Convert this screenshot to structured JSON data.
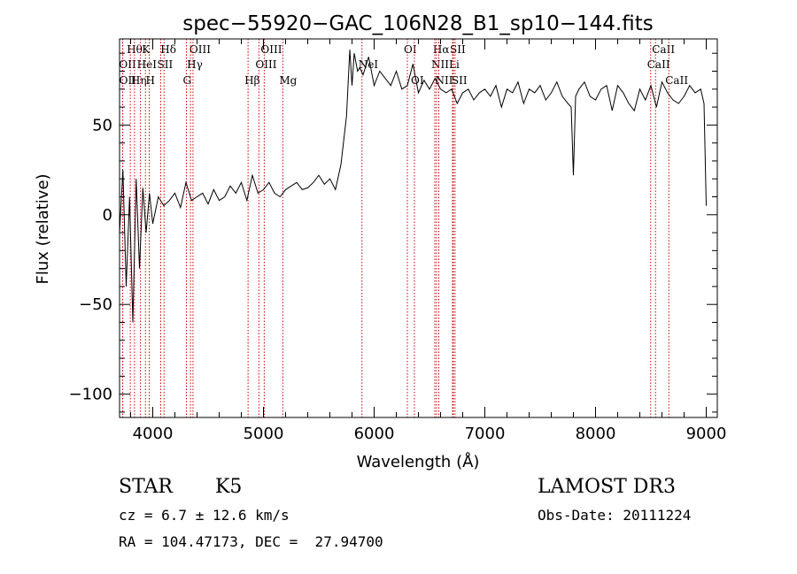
{
  "chart_data": {
    "type": "line",
    "title": "spec−55920−GAC_106N28_B1_sp10−144.fits",
    "xlabel": "Wavelength (Å)",
    "ylabel": "Flux (relative)",
    "xlim": [
      3700,
      9100
    ],
    "ylim": [
      -113,
      98
    ],
    "xticks": [
      {
        "value": 4000,
        "label": "4000"
      },
      {
        "value": 5000,
        "label": "5000"
      },
      {
        "value": 6000,
        "label": "6000"
      },
      {
        "value": 7000,
        "label": "7000"
      },
      {
        "value": 8000,
        "label": "8000"
      },
      {
        "value": 9000,
        "label": "9000"
      }
    ],
    "yticks": [
      {
        "value": 50,
        "label": "50"
      },
      {
        "value": 0,
        "label": "0"
      },
      {
        "value": -50,
        "label": "−50"
      },
      {
        "value": -100,
        "label": "−100"
      }
    ],
    "series": [
      {
        "color": "#000000",
        "x": [
          3700,
          3730,
          3760,
          3790,
          3820,
          3850,
          3880,
          3910,
          3940,
          3970,
          4000,
          4050,
          4100,
          4150,
          4200,
          4250,
          4300,
          4350,
          4400,
          4450,
          4500,
          4550,
          4600,
          4650,
          4700,
          4750,
          4800,
          4850,
          4900,
          4950,
          5000,
          5050,
          5100,
          5150,
          5200,
          5250,
          5300,
          5350,
          5400,
          5450,
          5500,
          5550,
          5600,
          5650,
          5700,
          5750,
          5780,
          5800,
          5820,
          5850,
          5870,
          5900,
          5950,
          6000,
          6050,
          6100,
          6150,
          6200,
          6250,
          6300,
          6350,
          6400,
          6450,
          6500,
          6550,
          6600,
          6650,
          6700,
          6750,
          6800,
          6850,
          6900,
          6950,
          7000,
          7050,
          7100,
          7150,
          7200,
          7250,
          7300,
          7350,
          7400,
          7450,
          7500,
          7550,
          7600,
          7650,
          7700,
          7750,
          7780,
          7800,
          7820,
          7850,
          7900,
          7950,
          8000,
          8050,
          8100,
          8150,
          8200,
          8250,
          8300,
          8350,
          8400,
          8450,
          8500,
          8550,
          8600,
          8650,
          8700,
          8750,
          8800,
          8850,
          8900,
          8950,
          8980,
          9000
        ],
        "y": [
          -10,
          25,
          -40,
          10,
          -60,
          20,
          -30,
          15,
          -10,
          12,
          -5,
          10,
          5,
          8,
          12,
          4,
          18,
          8,
          10,
          12,
          6,
          14,
          8,
          10,
          16,
          12,
          18,
          8,
          22,
          12,
          14,
          18,
          12,
          10,
          14,
          16,
          18,
          14,
          15,
          18,
          22,
          17,
          20,
          14,
          28,
          55,
          92,
          72,
          90,
          80,
          82,
          78,
          88,
          72,
          80,
          76,
          72,
          80,
          70,
          72,
          84,
          68,
          75,
          70,
          76,
          70,
          68,
          70,
          62,
          68,
          70,
          64,
          68,
          70,
          66,
          72,
          60,
          70,
          68,
          74,
          62,
          70,
          68,
          72,
          64,
          68,
          74,
          66,
          62,
          60,
          22,
          66,
          70,
          74,
          66,
          64,
          70,
          72,
          58,
          72,
          68,
          62,
          58,
          70,
          64,
          72,
          60,
          74,
          68,
          64,
          62,
          66,
          72,
          68,
          70,
          62,
          5
        ]
      }
    ],
    "lines": [
      {
        "label": "Hθ",
        "x": 3797,
        "row": 0
      },
      {
        "label": "OII",
        "x": 3727,
        "row": 1
      },
      {
        "label": "OII",
        "x": 3729,
        "row": 2
      },
      {
        "label": "Hη",
        "x": 3835,
        "row": 2
      },
      {
        "label": "K",
        "x": 3934,
        "row": 0
      },
      {
        "label": "HeI",
        "x": 3889,
        "row": 1
      },
      {
        "label": "H",
        "x": 3968,
        "row": 2
      },
      {
        "label": "Hδ",
        "x": 4102,
        "row": 0
      },
      {
        "label": "SII",
        "x": 4072,
        "row": 1
      },
      {
        "label": "OIII",
        "x": 4363,
        "row": 0
      },
      {
        "label": "Hγ",
        "x": 4341,
        "row": 1
      },
      {
        "label": "G",
        "x": 4304,
        "row": 2
      },
      {
        "label": "Hβ",
        "x": 4861,
        "row": 2
      },
      {
        "label": "OIII",
        "x": 5007,
        "row": 0
      },
      {
        "label": "OIII",
        "x": 4959,
        "row": 1
      },
      {
        "label": "Mg",
        "x": 5175,
        "row": 2
      },
      {
        "label": "NeI",
        "x": 5890,
        "row": 1
      },
      {
        "label": "OI",
        "x": 6300,
        "row": 0
      },
      {
        "label": "OI",
        "x": 6364,
        "row": 2
      },
      {
        "label": "Hα",
        "x": 6563,
        "row": 0
      },
      {
        "label": "SII",
        "x": 6716,
        "row": 0
      },
      {
        "label": "NII",
        "x": 6548,
        "row": 1
      },
      {
        "label": "Li",
        "x": 6708,
        "row": 1
      },
      {
        "label": "NII",
        "x": 6584,
        "row": 2
      },
      {
        "label": "SII",
        "x": 6731,
        "row": 2
      },
      {
        "label": "CaII",
        "x": 8542,
        "row": 0
      },
      {
        "label": "CaII",
        "x": 8498,
        "row": 1
      },
      {
        "label": "CaII",
        "x": 8662,
        "row": 2
      }
    ]
  },
  "info": {
    "class": "STAR",
    "subclass": "K5",
    "survey": "LAMOST DR3",
    "cz": "cz = 6.7 ± 12.6 km/s",
    "obs_date": "Obs-Date: 20111224",
    "coords": "RA = 104.47173, DEC =  27.94700"
  }
}
